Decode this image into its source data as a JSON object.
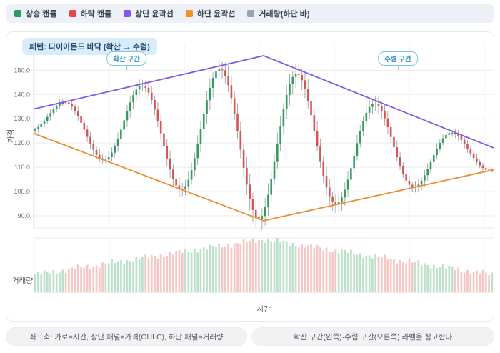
{
  "legend": {
    "items": [
      {
        "label": "상승 캔들",
        "color": "#2a9d5c"
      },
      {
        "label": "하락 캔들",
        "color": "#e04848"
      },
      {
        "label": "상단 윤곽선",
        "color": "#8257e8"
      },
      {
        "label": "하단 윤곽선",
        "color": "#f5921e"
      },
      {
        "label": "거래량(하단 바)",
        "color": "#9aa3ad"
      }
    ]
  },
  "chart": {
    "pattern_label": "패턴: 다이아몬드 바닥 (확산 → 수렴)",
    "annotations": [
      {
        "label": "확산 구간"
      },
      {
        "label": "수렴 구간"
      }
    ],
    "price_axis": {
      "label": "가격"
    },
    "time_axis": {
      "label": "시간"
    },
    "volume_axis": {
      "label": "거래량"
    }
  },
  "chart_data": {
    "type": "candlestick",
    "panels": [
      "price-OHLC",
      "volume"
    ],
    "title": "패턴: 다이아몬드 바닥 (확산 → 수렴)",
    "xlabel": "시간",
    "ylabel": "가격",
    "ylabel_volume": "거래량",
    "ylim": [
      85,
      161
    ],
    "y_ticks": [
      150,
      140,
      130,
      120,
      110,
      100,
      90
    ],
    "x_tick_labels": [],
    "x_gridline_count": 7,
    "grid": true,
    "legend_position": "top",
    "candle_count": 150,
    "wave_spec": {
      "description": "diamond bottom: sine wave, midline falls 129 -> 113.5, amplitude expands 5 -> 33 at center then contracts back to 5",
      "period_candles": 25.5,
      "first_peak_index": 10,
      "mid_start": 129,
      "mid_end": 113.5,
      "amp_edge": 5,
      "amp_center": 33,
      "wick_base": 0.6,
      "wick_amp_factor": 0.11
    },
    "peaks_price": [
      135,
      141,
      147.5,
      146.5,
      134.5,
      121.5
    ],
    "troughs_price": [
      117.5,
      106,
      89.5,
      96.5,
      108,
      112
    ],
    "upper_outline": {
      "label": "상단 윤곽선",
      "color": "#8257e8",
      "points": [
        [
          0,
          134
        ],
        [
          0.5,
          156
        ],
        [
          1,
          118
        ]
      ]
    },
    "lower_outline": {
      "label": "하단 윤곽선",
      "color": "#ee8c30",
      "points": [
        [
          0,
          124
        ],
        [
          0.5,
          88
        ],
        [
          1,
          109
        ]
      ]
    },
    "volume_spec": {
      "profile": "triangular, peak at center",
      "min": 26,
      "peak": 78,
      "scale_max": 80,
      "color_up": "#bce0ca",
      "color_down": "#f5c6c3"
    },
    "colors": {
      "up": "#2e9e5f",
      "down": "#d9534f",
      "wick": "#9aa0a8",
      "grid": "#ececf2",
      "spine": "#d8dce3"
    }
  },
  "footers": [
    {
      "text": "좌표축: 가로=시간, 상단 패널=가격(OHLC), 하단 패널=거래량"
    },
    {
      "text": "확산 구간(왼쪽)·수렴 구간(오른쪽) 라벨을 참고한다"
    }
  ]
}
